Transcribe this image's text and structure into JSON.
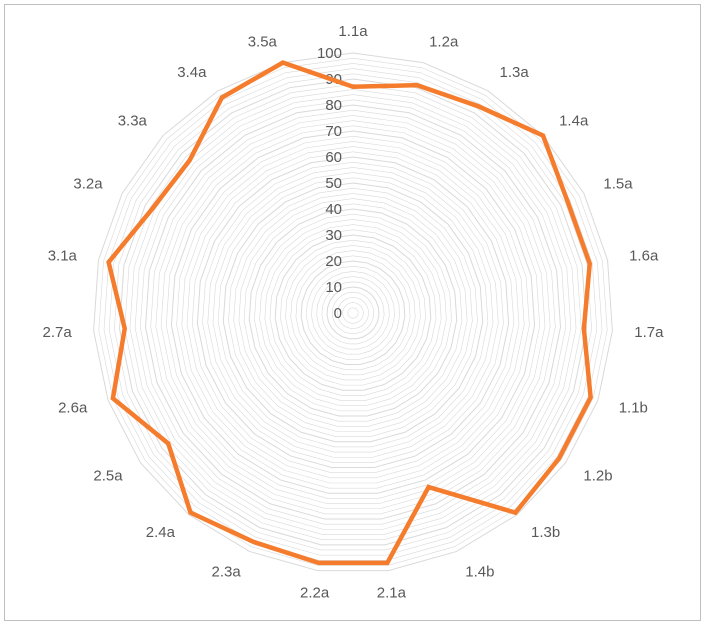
{
  "chart_data": {
    "type": "radar",
    "title": "",
    "categories": [
      "1.1a",
      "1.2a",
      "1.3a",
      "1.4a",
      "1.5a",
      "1.6a",
      "1.7a",
      "1.1b",
      "1.2b",
      "1.3b",
      "1.4b",
      "2.1a",
      "2.2a",
      "2.3a",
      "2.4a",
      "2.5a",
      "2.6a",
      "2.7a",
      "3.1a",
      "3.2a",
      "3.3a",
      "3.4a",
      "3.5a"
    ],
    "series": [
      {
        "values": [
          87,
          91,
          93,
          100,
          93,
          93,
          89,
          97,
          97,
          99,
          73,
          97,
          97,
          96,
          99,
          87,
          98,
          88,
          96,
          87,
          86,
          97,
          100
        ]
      }
    ],
    "rlim": [
      0,
      100
    ],
    "ticks": [
      0,
      10,
      20,
      30,
      40,
      50,
      60,
      70,
      80,
      90,
      100
    ],
    "minor_gridlines": true,
    "legend": "none",
    "colors": {
      "series": "#f47c2c",
      "grid": "#d9d9d9",
      "text": "#595959",
      "border": "#bfbfbf"
    }
  }
}
